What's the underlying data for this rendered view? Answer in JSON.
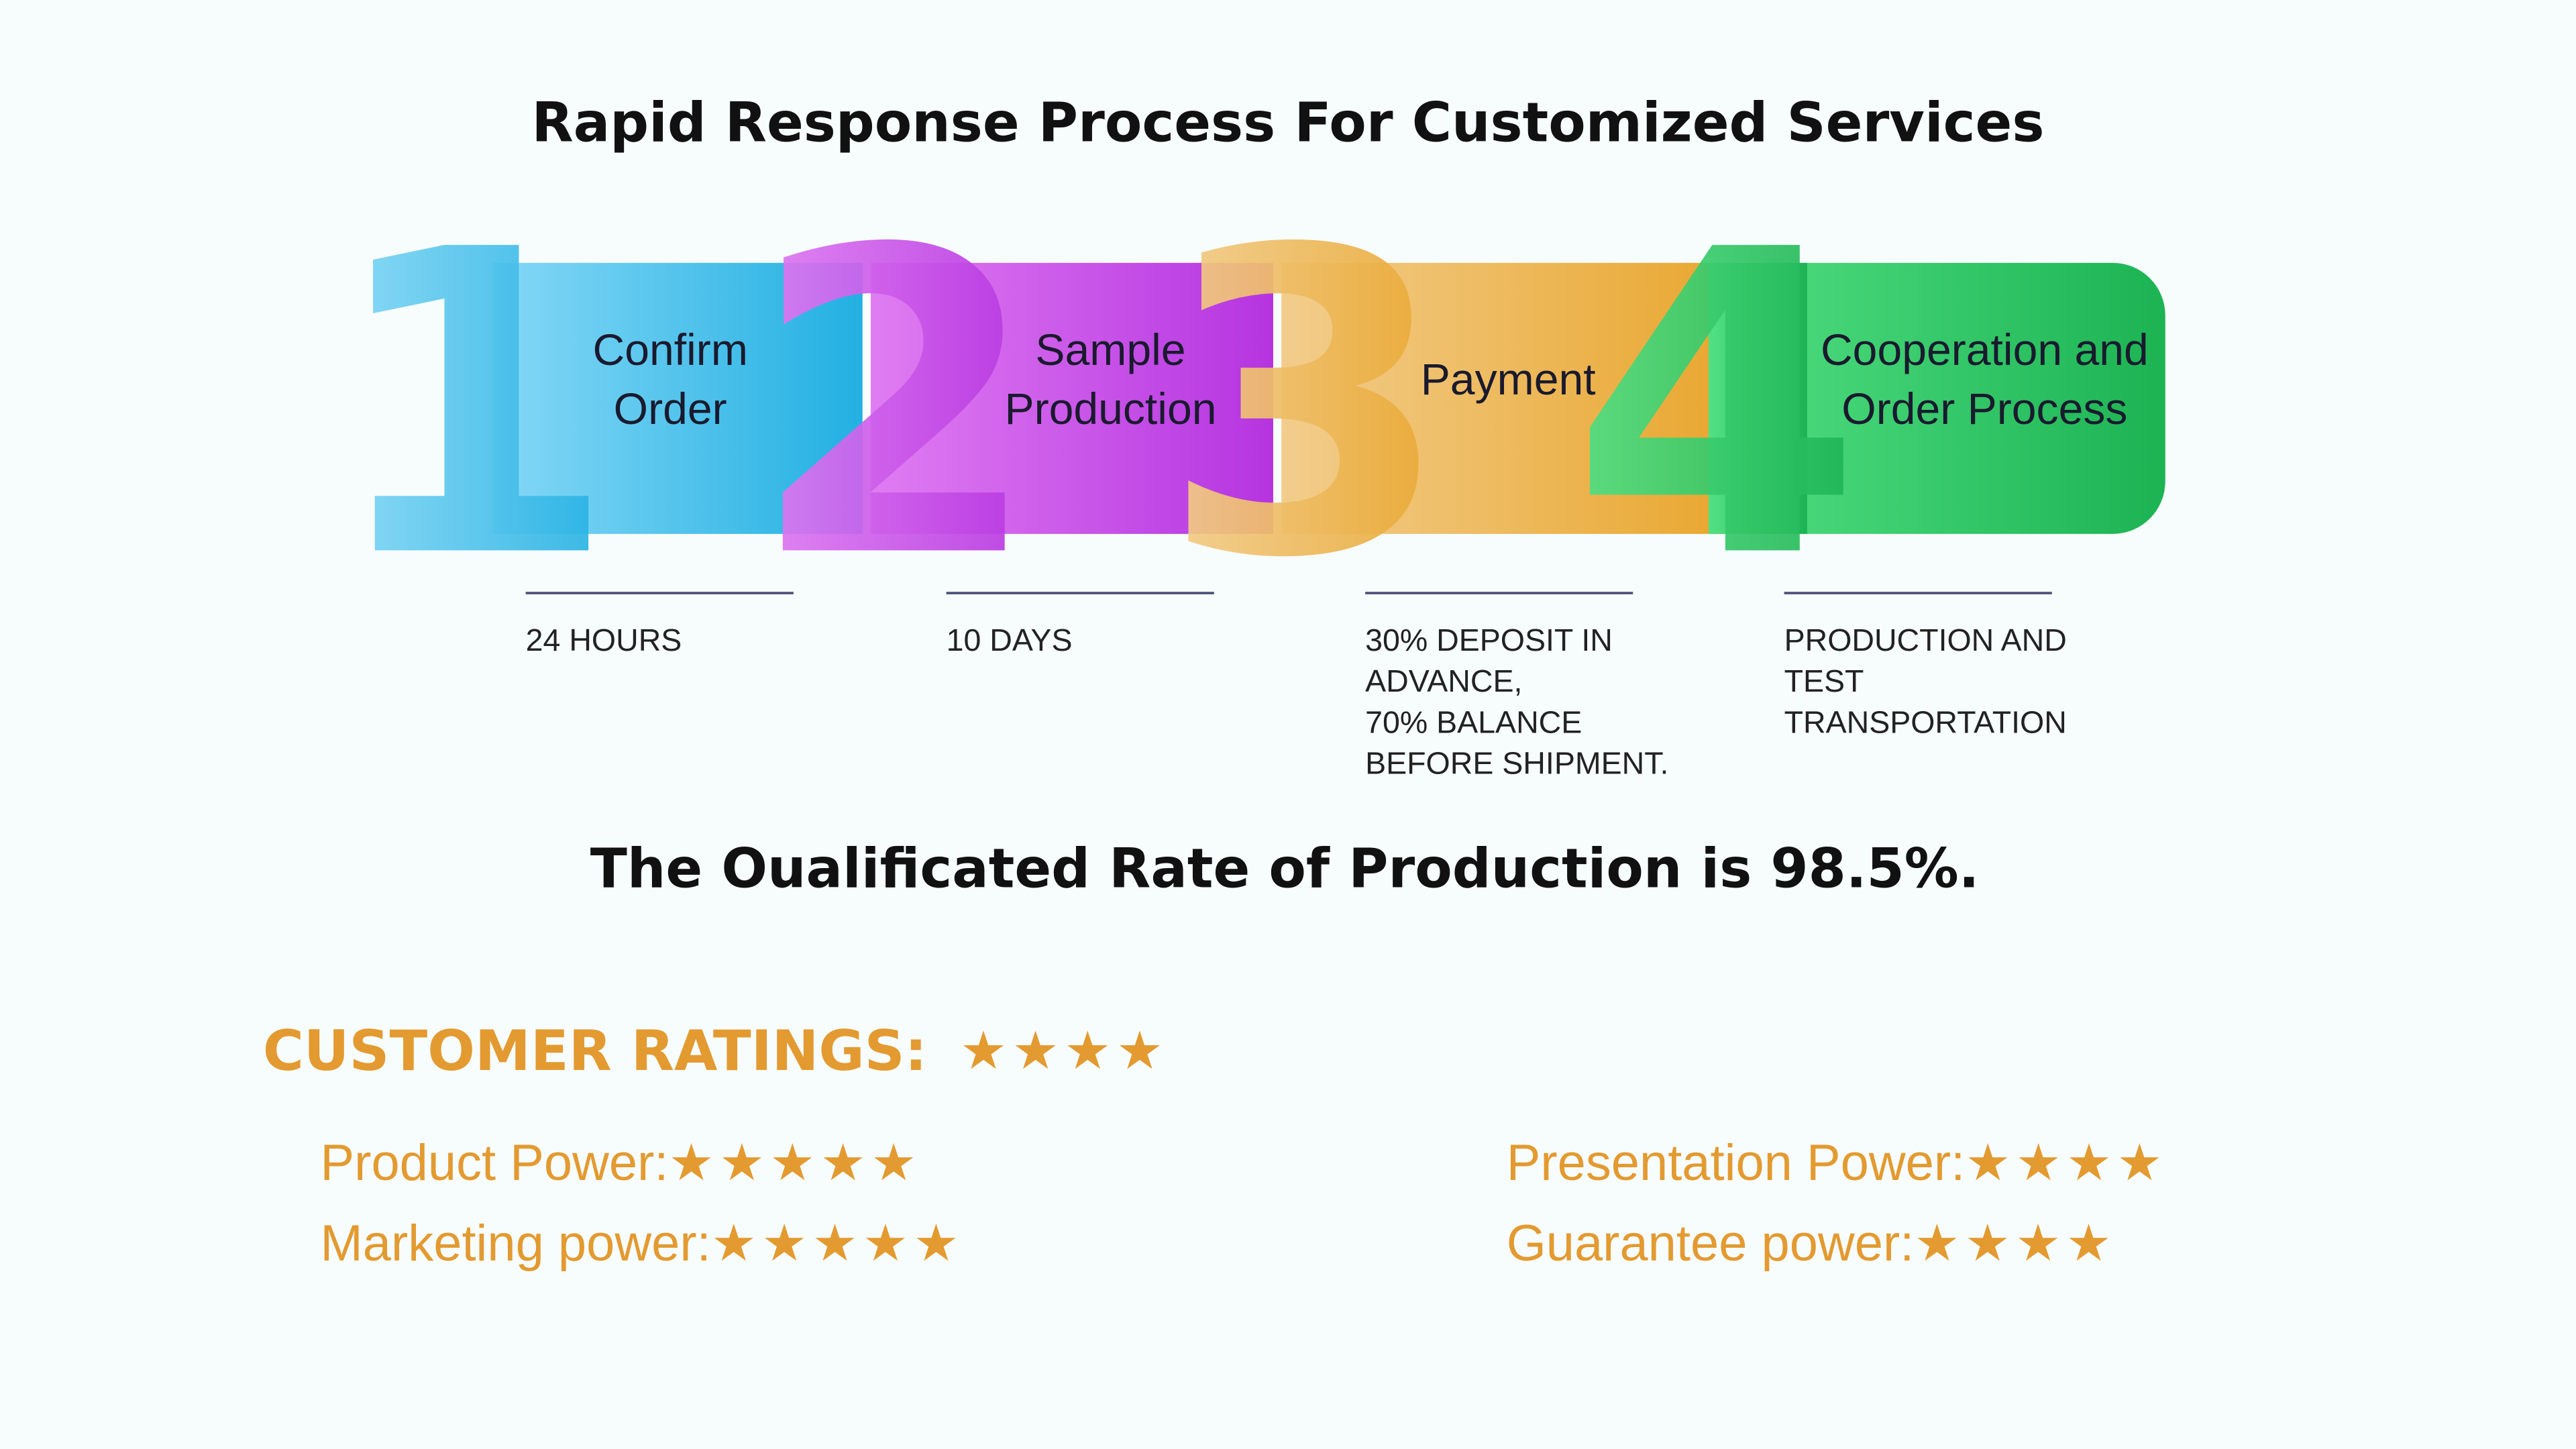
{
  "title": "Rapid Response Process For Customized Services",
  "steps": [
    {
      "number": "1",
      "label": [
        "Confirm",
        "Order"
      ],
      "detail": [
        "24 HOURS"
      ]
    },
    {
      "number": "2",
      "label": [
        "Sample",
        "Production"
      ],
      "detail": [
        "10 DAYS"
      ]
    },
    {
      "number": "3",
      "label": [
        "Payment"
      ],
      "detail": [
        "30% DEPOSIT IN",
        "ADVANCE,",
        "70% BALANCE",
        "BEFORE SHIPMENT."
      ]
    },
    {
      "number": "4",
      "label": [
        "Cooperation and",
        "Order Process"
      ],
      "detail": [
        "PRODUCTION AND",
        "TEST",
        "TRANSPORTATION"
      ]
    }
  ],
  "statement": "The Oualificated Rate of Production is 98.5%.",
  "ratings": {
    "title": "CUSTOMER RATINGS:",
    "stars": "★★★★",
    "items": [
      {
        "label": "Product Power:",
        "stars": "★★★★★"
      },
      {
        "label": "Marketing power:",
        "stars": "★★★★★"
      },
      {
        "label": "Presentation Power:",
        "stars": "★★★★"
      },
      {
        "label": "Guarantee power:",
        "stars": "★★★★"
      }
    ]
  }
}
